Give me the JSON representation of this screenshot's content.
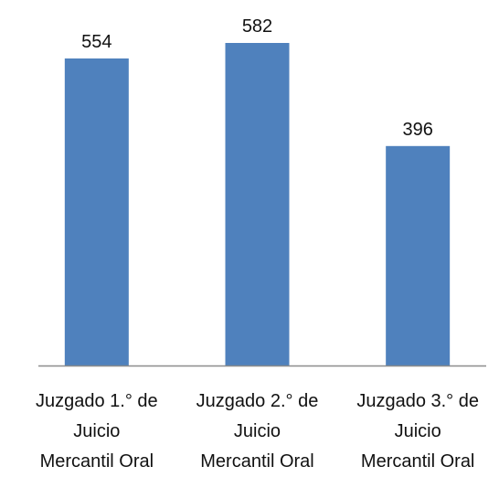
{
  "chart_data": {
    "type": "bar",
    "categories": [
      "Juzgado 1.° de\nJuicio\nMercantil Oral",
      "Juzgado 2.° de\nJuicio\nMercantil Oral",
      "Juzgado 3.° de\nJuicio\nMercantil Oral"
    ],
    "values": [
      554,
      582,
      396
    ],
    "color": "#4f81bd"
  }
}
